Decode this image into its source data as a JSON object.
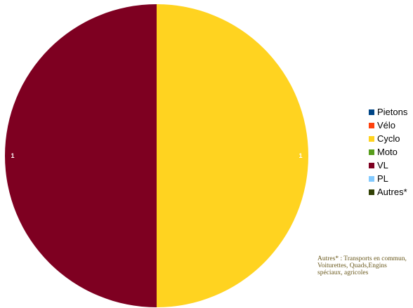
{
  "chart_data": {
    "type": "pie",
    "title": "",
    "categories": [
      "Pietons",
      "Vélo",
      "Cyclo",
      "Moto",
      "VL",
      "PL",
      "Autres*"
    ],
    "values": [
      0,
      0,
      1,
      0,
      1,
      0,
      0
    ],
    "colors": [
      "#004586",
      "#ff420e",
      "#ffd320",
      "#579d1c",
      "#7e0021",
      "#83caff",
      "#314004"
    ],
    "data_labels": [
      "",
      "",
      "1",
      "",
      "1",
      "",
      ""
    ],
    "legend_position": "right",
    "footnote": "Autres* : Transports en commun,  Voiturettes, Quads,Engins spéciaux, agricoles"
  }
}
